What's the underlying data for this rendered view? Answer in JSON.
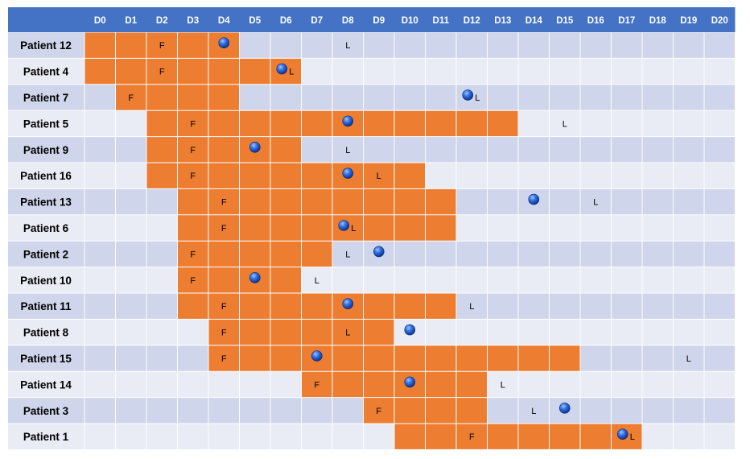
{
  "chart_data": {
    "type": "table",
    "columns": [
      "D0",
      "D1",
      "D2",
      "D3",
      "D4",
      "D5",
      "D6",
      "D7",
      "D8",
      "D9",
      "D10",
      "D11",
      "D12",
      "D13",
      "D14",
      "D15",
      "D16",
      "D17",
      "D18",
      "D19",
      "D20"
    ],
    "rows": [
      {
        "label": "Patient 12",
        "span_start": 0,
        "span_end": 4,
        "F": 2,
        "dot": 4,
        "L": 8
      },
      {
        "label": "Patient 4",
        "span_start": 0,
        "span_end": 6,
        "F": 2,
        "dot": 6,
        "L": 6
      },
      {
        "label": "Patient 7",
        "span_start": 1,
        "span_end": 4,
        "F": 1,
        "dot": 12,
        "L": 12
      },
      {
        "label": "Patient 5",
        "span_start": 2,
        "span_end": 13,
        "F": 3,
        "dot": 8,
        "L": 15
      },
      {
        "label": "Patient 9",
        "span_start": 2,
        "span_end": 6,
        "F": 3,
        "dot": 5,
        "L": 8
      },
      {
        "label": "Patient 16",
        "span_start": 2,
        "span_end": 10,
        "F": 3,
        "dot": 8,
        "L": 9
      },
      {
        "label": "Patient 13",
        "span_start": 3,
        "span_end": 11,
        "F": 4,
        "dot": 14,
        "L": 16
      },
      {
        "label": "Patient 6",
        "span_start": 3,
        "span_end": 11,
        "F": 4,
        "dot": 8,
        "L": 8
      },
      {
        "label": "Patient 2",
        "span_start": 3,
        "span_end": 7,
        "F": 3,
        "dot": 9,
        "L": 8
      },
      {
        "label": "Patient 10",
        "span_start": 3,
        "span_end": 6,
        "F": 3,
        "dot": 5,
        "L": 7
      },
      {
        "label": "Patient 11",
        "span_start": 3,
        "span_end": 11,
        "F": 4,
        "dot": 8,
        "L": 12
      },
      {
        "label": "Patient 8",
        "span_start": 4,
        "span_end": 9,
        "F": 4,
        "dot": 10,
        "L": 8
      },
      {
        "label": "Patient 15",
        "span_start": 4,
        "span_end": 15,
        "F": 4,
        "dot": 7,
        "L": 19
      },
      {
        "label": "Patient 14",
        "span_start": 7,
        "span_end": 12,
        "F": 7,
        "dot": 10,
        "L": 13
      },
      {
        "label": "Patient 3",
        "span_start": 9,
        "span_end": 12,
        "F": 9,
        "dot": 15,
        "L": 14
      },
      {
        "label": "Patient 1",
        "span_start": 10,
        "span_end": 17,
        "F": 12,
        "dot": 17,
        "L": 17
      }
    ],
    "marker_letters": {
      "F": "F",
      "L": "L"
    },
    "colors": {
      "header": "#4472c4",
      "header_text": "#ffffff",
      "row_band_a": "#cfd5ea",
      "row_band_b": "#e9ebf5",
      "span_fill": "#ed7d31",
      "dot": "#1f5fd6",
      "text": "#000000"
    }
  }
}
